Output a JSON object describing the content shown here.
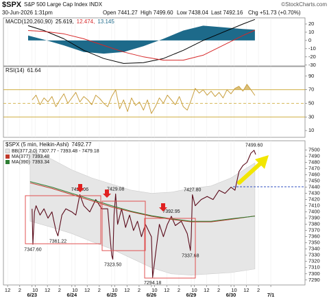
{
  "header": {
    "symbol": "$SPX",
    "name": "S&P 500 Large Cap Index INDX",
    "source": "©StockCharts.com",
    "date": "30-Jun-2026 1:31pm",
    "open": "Open 7441.27",
    "high": "High 7499.60",
    "low": "Low 7438.04",
    "last": "Last 7492.16",
    "change": "Chg +51.73 (+0.70%)"
  },
  "chart_data": [
    {
      "type": "line",
      "title": "MACD(120,260,90)",
      "title_values": [
        {
          "value": 25.619,
          "label": "25.619,"
        },
        {
          "value": 12.474,
          "label": "12.474,"
        },
        13.145
      ],
      "xlim": [
        -0.72,
        6.86
      ],
      "ylim": [
        -31,
        27.5
      ],
      "yticks": [
        20,
        10,
        0,
        -10,
        -20,
        -30
      ],
      "x": [
        -0.1,
        0.3,
        0.8,
        1.3,
        1.8,
        2.3,
        2.8,
        3.3,
        3.8,
        4.3,
        4.8,
        5.3,
        5.6
      ],
      "series": [
        {
          "style": "line",
          "color": "#000000",
          "values": [
            18,
            12,
            2,
            -12,
            -22,
            -28,
            -27,
            -22,
            -12,
            0,
            10,
            20,
            25.619
          ]
        },
        {
          "style": "line",
          "color": "#d62728",
          "values": [
            12,
            11,
            8,
            2,
            -6,
            -14,
            -20,
            -24,
            -24,
            -18,
            -6,
            6,
            12.474
          ]
        },
        {
          "style": "area",
          "color": "#1d6a8a",
          "values": [
            6,
            1,
            -6,
            -14,
            -16,
            -14,
            -7,
            2,
            12,
            18,
            16,
            14,
            13.145
          ]
        }
      ]
    },
    {
      "type": "line",
      "title": "RSI(14)",
      "title_values": [
        61.64
      ],
      "xlim": [
        -0.72,
        6.86
      ],
      "ylim": [
        0,
        104
      ],
      "yticks": [
        90,
        70,
        50,
        30,
        10
      ],
      "levels": [
        70,
        50,
        30
      ],
      "level_color": "#c9a227",
      "x": [
        0,
        0.1,
        0.2,
        0.3,
        0.4,
        0.5,
        0.6,
        0.7,
        0.8,
        0.9,
        1,
        1.1,
        1.2,
        1.3,
        1.4,
        1.5,
        1.6,
        1.7,
        1.8,
        1.9,
        2,
        2.1,
        2.2,
        2.3,
        2.4,
        2.5,
        2.6,
        2.7,
        2.8,
        2.9,
        3,
        3.1,
        3.2,
        3.3,
        3.4,
        3.5,
        3.6,
        3.7,
        3.8,
        3.9,
        4,
        4.1,
        4.2,
        4.3,
        4.4,
        4.5,
        4.6,
        4.7,
        4.8,
        4.9,
        5,
        5.1,
        5.2,
        5.3,
        5.4,
        5.5,
        5.6
      ],
      "series": [
        {
          "style": "line",
          "color": "#c9a040",
          "fill_above": 70,
          "fill_color": "#dcc07a",
          "values": [
            55,
            62,
            48,
            58,
            52,
            60,
            45,
            55,
            64,
            50,
            58,
            66,
            52,
            60,
            55,
            48,
            62,
            57,
            50,
            45,
            60,
            70,
            42,
            55,
            38,
            58,
            47,
            52,
            40,
            55,
            35,
            45,
            58,
            50,
            62,
            55,
            48,
            60,
            45,
            40,
            55,
            72,
            65,
            70,
            62,
            68,
            60,
            66,
            58,
            70,
            64,
            72,
            75,
            68,
            78,
            70,
            61.64
          ]
        }
      ]
    },
    {
      "type": "line",
      "title": "$SPX (5 min, Heikin-Ashi)",
      "title_values": [
        7492.77
      ],
      "xlim": [
        -0.72,
        6.86
      ],
      "ylim": [
        7282,
        7515
      ],
      "yticks": [
        7500,
        7490,
        7480,
        7470,
        7460,
        7450,
        7440,
        7430,
        7420,
        7410,
        7400,
        7390,
        7380,
        7370,
        7360,
        7350,
        7340,
        7330,
        7320,
        7310,
        7300,
        7290
      ],
      "xticks": [
        {
          "value": -0.615,
          "label": "12"
        },
        {
          "value": -0.31,
          "label": "2"
        },
        {
          "value": 0,
          "label": "6/23"
        },
        {
          "value": 0.077,
          "label": "10"
        },
        {
          "value": 0.385,
          "label": "12"
        },
        {
          "value": 0.69,
          "label": "2"
        },
        {
          "value": 1,
          "label": "6/24"
        },
        {
          "value": 1.077,
          "label": "10"
        },
        {
          "value": 1.385,
          "label": "12"
        },
        {
          "value": 1.69,
          "label": "2"
        },
        {
          "value": 2,
          "label": "6/25"
        },
        {
          "value": 2.077,
          "label": "10"
        },
        {
          "value": 2.385,
          "label": "12"
        },
        {
          "value": 2.69,
          "label": "2"
        },
        {
          "value": 3,
          "label": "6/26"
        },
        {
          "value": 3.077,
          "label": "10"
        },
        {
          "value": 3.385,
          "label": "12"
        },
        {
          "value": 3.69,
          "label": "2"
        },
        {
          "value": 4,
          "label": "6/29"
        },
        {
          "value": 4.077,
          "label": "10"
        },
        {
          "value": 4.385,
          "label": "12"
        },
        {
          "value": 4.69,
          "label": "2"
        },
        {
          "value": 5,
          "label": "6/30"
        },
        {
          "value": 5.077,
          "label": "10"
        },
        {
          "value": 5.385,
          "label": "12"
        },
        {
          "value": 5.69,
          "label": "2"
        },
        {
          "value": 6,
          "label": "7/1"
        }
      ],
      "x": [
        -0.05,
        0.5,
        1,
        1.5,
        2,
        2.5,
        3,
        3.5,
        4,
        4.5,
        5,
        5.6
      ],
      "band": {
        "legend": "BB(377,2.0) 7307.77 - 7393.48 - 7479.18",
        "color": "#e6e6e6",
        "upper": [
          7500,
          7485,
          7468,
          7455,
          7445,
          7435,
          7430,
          7432,
          7438,
          7442,
          7455,
          7479.18
        ],
        "lower": [
          7385,
          7375,
          7365,
          7352,
          7340,
          7325,
          7310,
          7300,
          7298,
          7300,
          7302,
          7307.77
        ]
      },
      "series": [
        {
          "style": "line",
          "color": "#5a0a1a",
          "x": [
            0,
            0.02,
            0.06,
            0.1,
            0.2,
            0.3,
            0.4,
            0.5,
            0.6,
            0.65,
            0.75,
            0.85,
            1,
            1.1,
            1.2,
            1.3,
            1.45,
            1.6,
            1.75,
            1.9,
            2,
            2.03,
            2.06,
            2.1,
            2.15,
            2.25,
            2.35,
            2.45,
            2.55,
            2.65,
            2.75,
            2.85,
            3,
            3.03,
            3.1,
            3.2,
            3.3,
            3.4,
            3.5,
            3.6,
            3.75,
            3.9,
            3.98,
            4,
            4.03,
            4.1,
            4.25,
            4.4,
            4.55,
            4.7,
            4.85,
            5,
            5.1,
            5.2,
            5.3,
            5.4,
            5.5,
            5.58,
            5.62
          ],
          "values": [
            7405,
            7347.6,
            7400,
            7410,
            7395,
            7405,
            7390,
            7400,
            7370,
            7361.22,
            7395,
            7405,
            7400,
            7395,
            7428.06,
            7410,
            7400,
            7420,
            7405,
            7405,
            7330,
            7323.5,
            7395,
            7429.08,
            7380,
            7405,
            7375,
            7395,
            7370,
            7385,
            7360,
            7380,
            7360,
            7294.18,
            7330,
            7380,
            7360,
            7380,
            7392.95,
            7378,
            7385,
            7365,
            7337.68,
            7360,
            7427.8,
            7410,
            7420,
            7425,
            7420,
            7435,
            7430,
            7440,
            7435,
            7465,
            7475,
            7480,
            7495,
            7499.6,
            7492.77
          ]
        },
        {
          "name": "MA(377)",
          "last": 7393.48,
          "style": "line",
          "color": "#c0392b",
          "values": [
            7447,
            7438,
            7428,
            7418,
            7408,
            7400,
            7393,
            7388,
            7384,
            7384,
            7388,
            7393.48
          ]
        },
        {
          "name": "MA(390)",
          "last": 7393.34,
          "style": "line",
          "color": "#2e7d32",
          "values": [
            7449,
            7440,
            7430,
            7420,
            7410,
            7401,
            7394,
            7389,
            7385,
            7385,
            7389,
            7393.34
          ]
        }
      ],
      "annotations": [
        {
          "x": 0.02,
          "value": 7347.6,
          "label": "7347.60",
          "position": "below"
        },
        {
          "x": 0.65,
          "value": 7361.22,
          "label": "7361.22",
          "position": "below"
        },
        {
          "x": 1.2,
          "value": 7428.06,
          "label": "7428.06",
          "position": "above"
        },
        {
          "x": 2.03,
          "value": 7323.5,
          "label": "7323.50",
          "position": "below"
        },
        {
          "x": 2.1,
          "value": 7429.08,
          "label": "7429.08",
          "position": "above"
        },
        {
          "x": 3.03,
          "value": 7294.18,
          "label": "7294.18",
          "position": "below"
        },
        {
          "x": 3.5,
          "value": 7392.95,
          "label": "7392.95",
          "position": "above"
        },
        {
          "x": 3.98,
          "value": 7337.68,
          "label": "7337.68",
          "position": "below"
        },
        {
          "x": 4.03,
          "value": 7427.8,
          "label": "7427.80",
          "position": "above"
        },
        {
          "x": 5.58,
          "value": 7499.6,
          "label": "7499.60",
          "position": "above"
        }
      ]
    }
  ]
}
